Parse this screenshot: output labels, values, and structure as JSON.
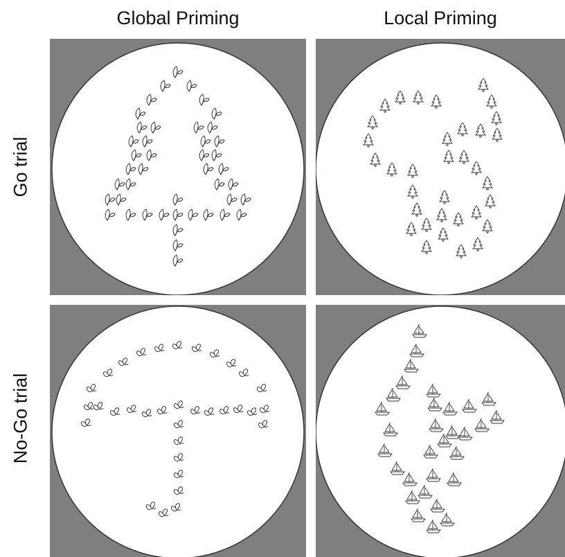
{
  "columns": [
    "Global Priming",
    "Local Priming"
  ],
  "rows": [
    "Go trial",
    "No-Go trial"
  ],
  "panels": [
    {
      "trial": "Go trial",
      "priming": "Global Priming",
      "global_shape": "tree",
      "local_element": "leaf-icon"
    },
    {
      "trial": "Go trial",
      "priming": "Local Priming",
      "global_shape": "number-6",
      "local_element": "tree-icon"
    },
    {
      "trial": "No-Go trial",
      "priming": "Global Priming",
      "global_shape": "umbrella",
      "local_element": "pretzel-icon"
    },
    {
      "trial": "No-Go trial",
      "priming": "Local Priming",
      "global_shape": "number-4",
      "local_element": "sailboat-icon"
    }
  ],
  "colors": {
    "panel_background": "#7f7f7f",
    "circle_fill": "#ffffff",
    "stroke": "#333333"
  }
}
